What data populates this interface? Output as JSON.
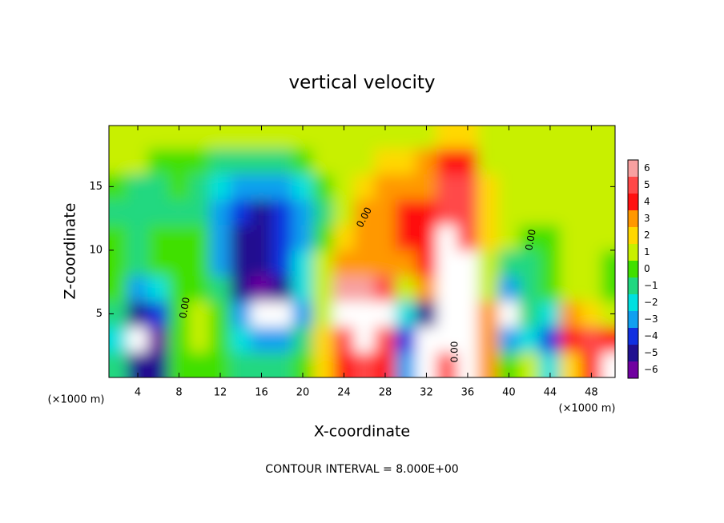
{
  "chart_data": {
    "type": "contourf",
    "title": "vertical velocity",
    "xlabel": "X-coordinate",
    "ylabel": "Z-coordinate",
    "xunit_left": "(×1000 m)",
    "xunit_right": "(×1000 m)",
    "footer": "CONTOUR INTERVAL = 8.000E+00",
    "contour_labels": [
      "0.00",
      "0.00",
      "0.00",
      "0.00"
    ],
    "xlim": [
      1.2,
      50.3
    ],
    "ylim": [
      0,
      19.8
    ],
    "xticks": [
      4,
      8,
      12,
      16,
      20,
      24,
      28,
      32,
      36,
      40,
      44,
      48
    ],
    "yticks": [
      5,
      10,
      15
    ],
    "x": [
      2,
      4,
      6,
      8,
      10,
      12,
      14,
      16,
      18,
      20,
      22,
      24,
      26,
      28,
      30,
      32,
      34,
      36,
      38,
      40,
      42,
      44,
      46,
      48,
      50
    ],
    "y": [
      1,
      3,
      5,
      7,
      9,
      11,
      13,
      15,
      17,
      19
    ],
    "z": [
      [
        -1,
        -5,
        -5,
        0,
        0,
        0,
        -1,
        -1,
        -1,
        0,
        2,
        4,
        5,
        4,
        -3,
        -7,
        5,
        8,
        3,
        0,
        1,
        -2,
        2,
        4,
        7
      ],
      [
        -2,
        -7,
        -6,
        0,
        1,
        0,
        -2,
        -3,
        -3,
        -1,
        2,
        5,
        7,
        5,
        -4,
        -7,
        8,
        8,
        3,
        -3,
        -2,
        -4,
        4,
        5,
        4
      ],
      [
        -1,
        -5,
        -4,
        0,
        1,
        0,
        -3,
        -7,
        -7,
        -3,
        1,
        8,
        8,
        7,
        -2,
        -5,
        8,
        8,
        3,
        -7,
        -1,
        -2,
        3,
        2,
        1
      ],
      [
        0,
        -3,
        -2,
        0,
        0,
        -1,
        -5,
        -6,
        -5,
        -2,
        1,
        6,
        6,
        5,
        1,
        3,
        8,
        8,
        1,
        -3,
        -1,
        0,
        1,
        1,
        0
      ],
      [
        0,
        -1,
        0,
        0,
        0,
        -3,
        -5,
        -5,
        -4,
        -2,
        1,
        3,
        3,
        3,
        3,
        4,
        8,
        8,
        1,
        -1,
        -1,
        0,
        1,
        1,
        0
      ],
      [
        0,
        -1,
        0,
        0,
        0,
        -3,
        -5,
        -5,
        -4,
        -3,
        0,
        2,
        3,
        3,
        4,
        4,
        7,
        5,
        2,
        1,
        0,
        0,
        1,
        1,
        1
      ],
      [
        -1,
        -1,
        -1,
        -1,
        -1,
        -3,
        -4,
        -5,
        -4,
        -3,
        -1,
        1,
        3,
        3,
        4,
        4,
        5,
        5,
        2,
        1,
        1,
        1,
        1,
        1,
        1
      ],
      [
        0,
        -1,
        -1,
        0,
        -1,
        -2,
        -3,
        -3,
        -3,
        -2,
        0,
        1,
        2,
        3,
        3,
        3,
        5,
        5,
        2,
        1,
        1,
        1,
        1,
        1,
        1
      ],
      [
        1,
        1,
        0,
        0,
        0,
        -1,
        -1,
        -1,
        -1,
        0,
        1,
        1,
        1,
        2,
        2,
        3,
        4,
        4,
        1,
        1,
        1,
        1,
        1,
        1,
        1
      ],
      [
        1,
        1,
        1,
        1,
        1,
        1,
        1,
        1,
        1,
        1,
        1,
        1,
        1,
        1,
        1,
        1,
        2,
        2,
        1,
        1,
        1,
        1,
        1,
        1,
        1
      ]
    ],
    "colorbar": {
      "levels": [
        6,
        5,
        4,
        3,
        2,
        1,
        0,
        -1,
        -2,
        -3,
        -4,
        -5,
        -6
      ],
      "colors": [
        "#f8a0a0",
        "#ff4848",
        "#ff1010",
        "#ff9800",
        "#ffd800",
        "#c8f000",
        "#40e000",
        "#20d880",
        "#00e0e0",
        "#10a0f0",
        "#1030e0",
        "#201090",
        "#7000a0"
      ]
    },
    "saturation_color": "#ffffff"
  }
}
